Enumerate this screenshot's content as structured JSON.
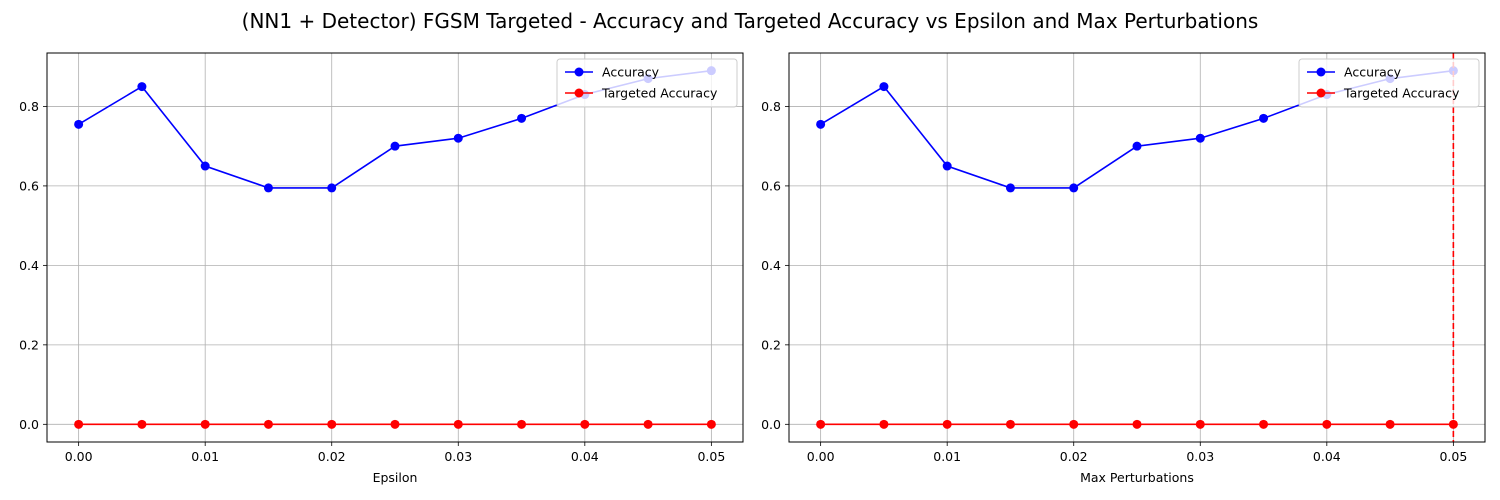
{
  "figure": {
    "title": "(NN1 + Detector) FGSM Targeted - Accuracy and Targeted Accuracy vs Epsilon and Max Perturbations"
  },
  "chart_data": [
    {
      "type": "line",
      "title": "",
      "xlabel": "Epsilon",
      "ylabel": "",
      "x": [
        0.0,
        0.005,
        0.01,
        0.015,
        0.02,
        0.025,
        0.03,
        0.035,
        0.04,
        0.045,
        0.05
      ],
      "series": [
        {
          "name": "Accuracy",
          "color": "#0000ff",
          "values": [
            0.755,
            0.85,
            0.65,
            0.595,
            0.595,
            0.7,
            0.72,
            0.77,
            0.83,
            0.87,
            0.89
          ]
        },
        {
          "name": "Targeted Accuracy",
          "color": "#ff0000",
          "values": [
            0,
            0,
            0,
            0,
            0,
            0,
            0,
            0,
            0,
            0,
            0
          ]
        }
      ],
      "xlim": [
        -0.0025,
        0.0525
      ],
      "ylim": [
        -0.0445,
        0.9345
      ],
      "xticks": [
        "0.00",
        "0.01",
        "0.02",
        "0.03",
        "0.04",
        "0.05"
      ],
      "xtick_values": [
        0.0,
        0.01,
        0.02,
        0.03,
        0.04,
        0.05
      ],
      "yticks": [
        "0.0",
        "0.2",
        "0.4",
        "0.6",
        "0.8"
      ],
      "ytick_values": [
        0.0,
        0.2,
        0.4,
        0.6,
        0.8
      ],
      "grid": true,
      "legend": "upper-right"
    },
    {
      "type": "line",
      "title": "",
      "xlabel": "Max Perturbations",
      "ylabel": "",
      "x": [
        0.0,
        0.005,
        0.01,
        0.015,
        0.02,
        0.025,
        0.03,
        0.035,
        0.04,
        0.045,
        0.05
      ],
      "series": [
        {
          "name": "Accuracy",
          "color": "#0000ff",
          "values": [
            0.755,
            0.85,
            0.65,
            0.595,
            0.595,
            0.7,
            0.72,
            0.77,
            0.83,
            0.87,
            0.89
          ]
        },
        {
          "name": "Targeted Accuracy",
          "color": "#ff0000",
          "values": [
            0,
            0,
            0,
            0,
            0,
            0,
            0,
            0,
            0,
            0,
            0
          ]
        }
      ],
      "xlim": [
        -0.0025,
        0.0525
      ],
      "ylim": [
        -0.0445,
        0.9345
      ],
      "xticks": [
        "0.00",
        "0.01",
        "0.02",
        "0.03",
        "0.04",
        "0.05"
      ],
      "xtick_values": [
        0.0,
        0.01,
        0.02,
        0.03,
        0.04,
        0.05
      ],
      "yticks": [
        "0.0",
        "0.2",
        "0.4",
        "0.6",
        "0.8"
      ],
      "ytick_values": [
        0.0,
        0.2,
        0.4,
        0.6,
        0.8
      ],
      "grid": true,
      "legend": "upper-right",
      "vline": {
        "x": 0.05,
        "color": "#ff0000",
        "style": "dashed"
      }
    }
  ]
}
